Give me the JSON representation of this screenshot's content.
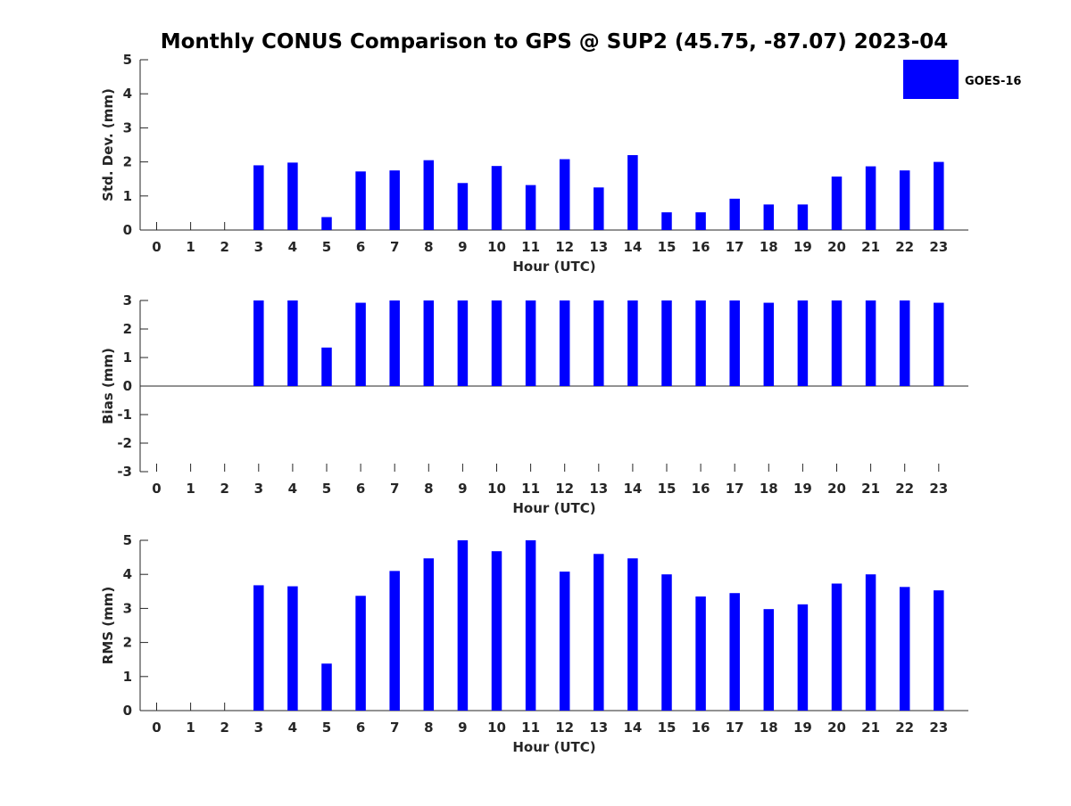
{
  "title": "Monthly CONUS Comparison to GPS @ SUP2 (45.75, -87.07) 2023-04",
  "legend": {
    "label": "GOES-16",
    "color": "#0000ff",
    "placement": "top-right"
  },
  "chart_data": [
    {
      "type": "bar",
      "xlabel": "Hour (UTC)",
      "ylabel": "Std. Dev. (mm)",
      "ylim": [
        0,
        5
      ],
      "yticks": [
        0,
        1,
        2,
        3,
        4,
        5
      ],
      "categories": [
        "0",
        "1",
        "2",
        "3",
        "4",
        "5",
        "6",
        "7",
        "8",
        "9",
        "10",
        "11",
        "12",
        "13",
        "14",
        "15",
        "16",
        "17",
        "18",
        "19",
        "20",
        "21",
        "22",
        "23"
      ],
      "series": [
        {
          "name": "GOES-16",
          "values": [
            null,
            null,
            null,
            1.9,
            1.98,
            0.38,
            1.72,
            1.75,
            2.05,
            1.38,
            1.88,
            1.32,
            2.08,
            1.25,
            2.2,
            0.52,
            0.52,
            0.92,
            0.75,
            0.75,
            1.57,
            1.87,
            1.75,
            2.0
          ]
        }
      ]
    },
    {
      "type": "bar",
      "xlabel": "Hour (UTC)",
      "ylabel": "Bias (mm)",
      "ylim": [
        -3,
        3
      ],
      "yticks": [
        -3,
        -2,
        -1,
        0,
        1,
        2,
        3
      ],
      "categories": [
        "0",
        "1",
        "2",
        "3",
        "4",
        "5",
        "6",
        "7",
        "8",
        "9",
        "10",
        "11",
        "12",
        "13",
        "14",
        "15",
        "16",
        "17",
        "18",
        "19",
        "20",
        "21",
        "22",
        "23"
      ],
      "series": [
        {
          "name": "GOES-16",
          "values": [
            null,
            null,
            null,
            3.0,
            3.0,
            1.35,
            2.92,
            3.0,
            3.0,
            3.0,
            3.0,
            3.0,
            3.0,
            3.0,
            3.0,
            3.0,
            3.0,
            3.0,
            2.92,
            3.0,
            3.0,
            3.0,
            3.0,
            2.92
          ]
        }
      ]
    },
    {
      "type": "bar",
      "xlabel": "Hour (UTC)",
      "ylabel": "RMS (mm)",
      "ylim": [
        0,
        5
      ],
      "yticks": [
        0,
        1,
        2,
        3,
        4,
        5
      ],
      "categories": [
        "0",
        "1",
        "2",
        "3",
        "4",
        "5",
        "6",
        "7",
        "8",
        "9",
        "10",
        "11",
        "12",
        "13",
        "14",
        "15",
        "16",
        "17",
        "18",
        "19",
        "20",
        "21",
        "22",
        "23"
      ],
      "series": [
        {
          "name": "GOES-16",
          "values": [
            null,
            null,
            null,
            3.68,
            3.65,
            1.38,
            3.37,
            4.1,
            4.47,
            5.0,
            4.68,
            5.0,
            4.08,
            4.6,
            4.47,
            4.0,
            3.35,
            3.45,
            2.98,
            3.12,
            3.73,
            4.0,
            3.63,
            3.53
          ]
        }
      ]
    }
  ]
}
